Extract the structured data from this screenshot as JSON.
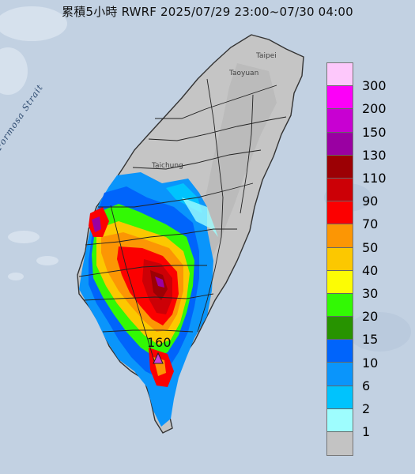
{
  "title": "累積5小時 RWRF 2025/07/29 23:00~07/30 04:00",
  "place_labels": {
    "taipei": "Taipei",
    "taoyuan": "Taoyuan",
    "taichung": "Taichung",
    "strait": "Formosa Strait"
  },
  "max_marker": {
    "value": "160",
    "color": "#d040d8"
  },
  "legend": [
    {
      "label": "300",
      "color": "#fdc8fb"
    },
    {
      "label": "200",
      "color": "#fc00f8"
    },
    {
      "label": "150",
      "color": "#c800d2"
    },
    {
      "label": "130",
      "color": "#9a00a2"
    },
    {
      "label": "110",
      "color": "#9c0004"
    },
    {
      "label": "90",
      "color": "#cc0006"
    },
    {
      "label": "70",
      "color": "#fc0000"
    },
    {
      "label": "50",
      "color": "#fc9604"
    },
    {
      "label": "40",
      "color": "#fcc800"
    },
    {
      "label": "30",
      "color": "#fcfc04"
    },
    {
      "label": "20",
      "color": "#32f904"
    },
    {
      "label": "15",
      "color": "#279300"
    },
    {
      "label": "10",
      "color": "#0064fb"
    },
    {
      "label": "6",
      "color": "#0a95fb"
    },
    {
      "label": "2",
      "color": "#00c3fd"
    },
    {
      "label": "1",
      "color": "#9efdfe"
    },
    {
      "label": "",
      "color": "#c3c3c3"
    }
  ]
}
